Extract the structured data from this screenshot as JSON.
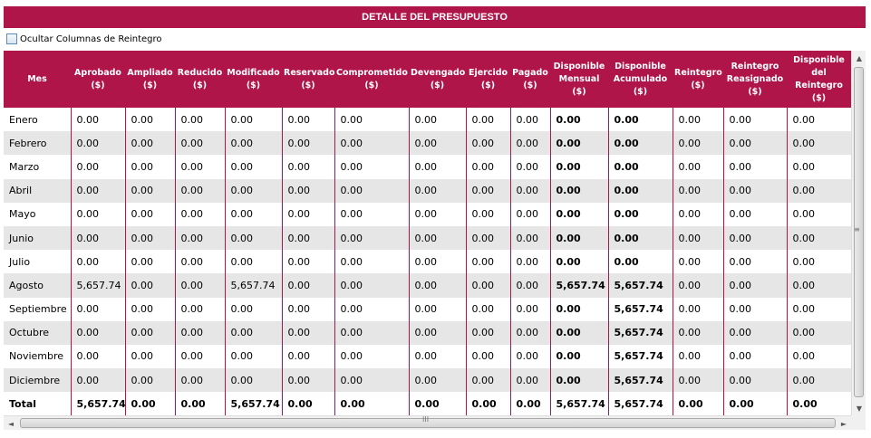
{
  "title": "DETALLE DEL PRESUPUESTO",
  "toggle": {
    "label": "Ocultar Columnas de Reintegro",
    "checked": false
  },
  "colors": {
    "header_bg": "#b0154a",
    "row_alt": "#e6e6e6"
  },
  "columns": [
    {
      "l1": "Mes",
      "l2": "",
      "l3": "",
      "l4": ""
    },
    {
      "l1": "Aprobado",
      "l2": "($)",
      "l3": "",
      "l4": ""
    },
    {
      "l1": "Ampliado",
      "l2": "($)",
      "l3": "",
      "l4": ""
    },
    {
      "l1": "Reducido",
      "l2": "($)",
      "l3": "",
      "l4": ""
    },
    {
      "l1": "Modificado",
      "l2": "($)",
      "l3": "",
      "l4": ""
    },
    {
      "l1": "Reservado",
      "l2": "($)",
      "l3": "",
      "l4": ""
    },
    {
      "l1": "Comprometido",
      "l2": "($)",
      "l3": "",
      "l4": ""
    },
    {
      "l1": "Devengado",
      "l2": "($)",
      "l3": "",
      "l4": ""
    },
    {
      "l1": "Ejercido",
      "l2": "($)",
      "l3": "",
      "l4": ""
    },
    {
      "l1": "Pagado",
      "l2": "($)",
      "l3": "",
      "l4": ""
    },
    {
      "l1": "Disponible",
      "l2": "Mensual ($)",
      "l3": "",
      "l4": ""
    },
    {
      "l1": "Disponible",
      "l2": "Acumulado",
      "l3": "($)",
      "l4": ""
    },
    {
      "l1": "Reintegro",
      "l2": "($)",
      "l3": "",
      "l4": ""
    },
    {
      "l1": "Reintegro",
      "l2": "Reasignado",
      "l3": "($)",
      "l4": ""
    },
    {
      "l1": "Disponible",
      "l2": "del",
      "l3": "Reintegro",
      "l4": "($)"
    }
  ],
  "rows": [
    {
      "c0": "Enero",
      "c1": "0.00",
      "c2": "0.00",
      "c3": "0.00",
      "c4": "0.00",
      "c5": "0.00",
      "c6": "0.00",
      "c7": "0.00",
      "c8": "0.00",
      "c9": "0.00",
      "c10": "0.00",
      "c11": "0.00",
      "c12": "0.00",
      "c13": "0.00",
      "c14": "0.00"
    },
    {
      "c0": "Febrero",
      "c1": "0.00",
      "c2": "0.00",
      "c3": "0.00",
      "c4": "0.00",
      "c5": "0.00",
      "c6": "0.00",
      "c7": "0.00",
      "c8": "0.00",
      "c9": "0.00",
      "c10": "0.00",
      "c11": "0.00",
      "c12": "0.00",
      "c13": "0.00",
      "c14": "0.00"
    },
    {
      "c0": "Marzo",
      "c1": "0.00",
      "c2": "0.00",
      "c3": "0.00",
      "c4": "0.00",
      "c5": "0.00",
      "c6": "0.00",
      "c7": "0.00",
      "c8": "0.00",
      "c9": "0.00",
      "c10": "0.00",
      "c11": "0.00",
      "c12": "0.00",
      "c13": "0.00",
      "c14": "0.00"
    },
    {
      "c0": "Abril",
      "c1": "0.00",
      "c2": "0.00",
      "c3": "0.00",
      "c4": "0.00",
      "c5": "0.00",
      "c6": "0.00",
      "c7": "0.00",
      "c8": "0.00",
      "c9": "0.00",
      "c10": "0.00",
      "c11": "0.00",
      "c12": "0.00",
      "c13": "0.00",
      "c14": "0.00"
    },
    {
      "c0": "Mayo",
      "c1": "0.00",
      "c2": "0.00",
      "c3": "0.00",
      "c4": "0.00",
      "c5": "0.00",
      "c6": "0.00",
      "c7": "0.00",
      "c8": "0.00",
      "c9": "0.00",
      "c10": "0.00",
      "c11": "0.00",
      "c12": "0.00",
      "c13": "0.00",
      "c14": "0.00"
    },
    {
      "c0": "Junio",
      "c1": "0.00",
      "c2": "0.00",
      "c3": "0.00",
      "c4": "0.00",
      "c5": "0.00",
      "c6": "0.00",
      "c7": "0.00",
      "c8": "0.00",
      "c9": "0.00",
      "c10": "0.00",
      "c11": "0.00",
      "c12": "0.00",
      "c13": "0.00",
      "c14": "0.00"
    },
    {
      "c0": "Julio",
      "c1": "0.00",
      "c2": "0.00",
      "c3": "0.00",
      "c4": "0.00",
      "c5": "0.00",
      "c6": "0.00",
      "c7": "0.00",
      "c8": "0.00",
      "c9": "0.00",
      "c10": "0.00",
      "c11": "0.00",
      "c12": "0.00",
      "c13": "0.00",
      "c14": "0.00"
    },
    {
      "c0": "Agosto",
      "c1": "5,657.74",
      "c2": "0.00",
      "c3": "0.00",
      "c4": "5,657.74",
      "c5": "0.00",
      "c6": "0.00",
      "c7": "0.00",
      "c8": "0.00",
      "c9": "0.00",
      "c10": "5,657.74",
      "c11": "5,657.74",
      "c12": "0.00",
      "c13": "0.00",
      "c14": "0.00"
    },
    {
      "c0": "Septiembre",
      "c1": "0.00",
      "c2": "0.00",
      "c3": "0.00",
      "c4": "0.00",
      "c5": "0.00",
      "c6": "0.00",
      "c7": "0.00",
      "c8": "0.00",
      "c9": "0.00",
      "c10": "0.00",
      "c11": "5,657.74",
      "c12": "0.00",
      "c13": "0.00",
      "c14": "0.00"
    },
    {
      "c0": "Octubre",
      "c1": "0.00",
      "c2": "0.00",
      "c3": "0.00",
      "c4": "0.00",
      "c5": "0.00",
      "c6": "0.00",
      "c7": "0.00",
      "c8": "0.00",
      "c9": "0.00",
      "c10": "0.00",
      "c11": "5,657.74",
      "c12": "0.00",
      "c13": "0.00",
      "c14": "0.00"
    },
    {
      "c0": "Noviembre",
      "c1": "0.00",
      "c2": "0.00",
      "c3": "0.00",
      "c4": "0.00",
      "c5": "0.00",
      "c6": "0.00",
      "c7": "0.00",
      "c8": "0.00",
      "c9": "0.00",
      "c10": "0.00",
      "c11": "5,657.74",
      "c12": "0.00",
      "c13": "0.00",
      "c14": "0.00"
    },
    {
      "c0": "Diciembre",
      "c1": "0.00",
      "c2": "0.00",
      "c3": "0.00",
      "c4": "0.00",
      "c5": "0.00",
      "c6": "0.00",
      "c7": "0.00",
      "c8": "0.00",
      "c9": "0.00",
      "c10": "0.00",
      "c11": "5,657.74",
      "c12": "0.00",
      "c13": "0.00",
      "c14": "0.00"
    }
  ],
  "total": {
    "c0": "Total",
    "c1": "5,657.74",
    "c2": "0.00",
    "c3": "0.00",
    "c4": "5,657.74",
    "c5": "0.00",
    "c6": "0.00",
    "c7": "0.00",
    "c8": "0.00",
    "c9": "0.00",
    "c10": "5,657.74",
    "c11": "5,657.74",
    "c12": "0.00",
    "c13": "0.00",
    "c14": "0.00"
  },
  "scrollbars": {
    "up": "▲",
    "down": "▼",
    "left": "◄",
    "right": "►",
    "vgrip": "≡",
    "hgrip": "III"
  }
}
